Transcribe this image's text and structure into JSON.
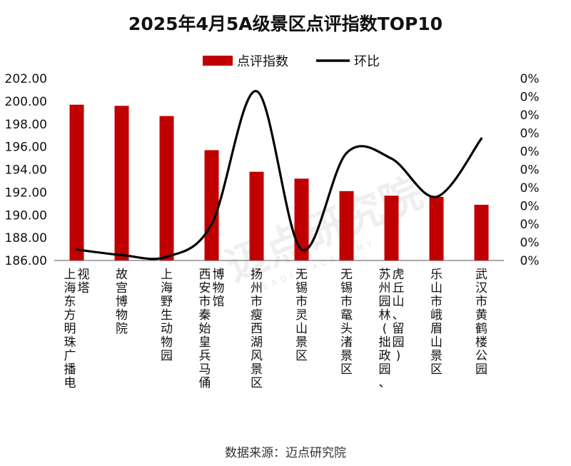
{
  "chart_data": {
    "type": "bar",
    "title": "2025年4月5A级景区点评指数TOP10",
    "categories": [
      "上海东方明珠广播电视塔",
      "故宫博物院",
      "上海野生动物园",
      "西安市秦始皇兵马俑博物馆",
      "扬州市瘦西湖风景区",
      "无锡市灵山景区",
      "无锡市鼋头渚景区",
      "苏州园林(拙政园、虎丘山、留园)",
      "乐山市峨眉山景区",
      "武汉市黄鹤楼公园"
    ],
    "series": [
      {
        "name": "点评指数",
        "type": "bar",
        "color": "#c00000",
        "values": [
          199.7,
          199.6,
          198.7,
          195.7,
          193.8,
          193.2,
          192.1,
          191.7,
          191.6,
          190.9
        ]
      },
      {
        "name": "环比",
        "type": "line",
        "color": "#000000",
        "axis": "right",
        "values": [
          0.6,
          0.3,
          0.2,
          2.0,
          9.3,
          0.6,
          5.9,
          5.6,
          3.5,
          6.7
        ]
      }
    ],
    "ylim": [
      186,
      202
    ],
    "yticks": [
      "186.00",
      "188.00",
      "190.00",
      "192.00",
      "194.00",
      "196.00",
      "198.00",
      "200.00",
      "202.00"
    ],
    "y2lim": [
      0,
      10
    ],
    "y2ticks": [
      "0%",
      "0%",
      "0%",
      "0%",
      "0%",
      "0%",
      "0%",
      "0%",
      "0%",
      "0%",
      "0%"
    ],
    "legend_position": "top-center",
    "xlabel": "",
    "ylabel": ""
  },
  "source": "数据来源：迈点研究院",
  "watermark": {
    "main": "迈点研究院",
    "sub": "MEADIN ACADEMY"
  }
}
